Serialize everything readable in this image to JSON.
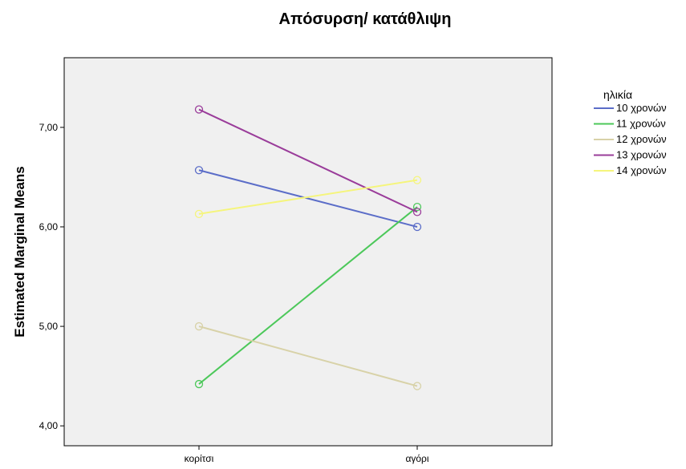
{
  "chart_data": {
    "type": "line",
    "title": "Απόσυρση/ κατάθλιψη",
    "ylabel": "Estimated Marginal Means",
    "xlabel": "",
    "categories": [
      "κορίτσι",
      "αγόρι"
    ],
    "ylim": [
      3.8,
      7.7
    ],
    "yticks": [
      4.0,
      5.0,
      6.0,
      7.0
    ],
    "ytick_labels": [
      "4,00",
      "5,00",
      "6,00",
      "7,00"
    ],
    "grid": false,
    "legend_title": "ηλικία",
    "legend_position": "right",
    "series": [
      {
        "name": "10 χρονών",
        "color": "#5b6dc8",
        "values": [
          6.57,
          6.0
        ]
      },
      {
        "name": "11 χρονών",
        "color": "#4cc85a",
        "values": [
          4.42,
          6.2
        ]
      },
      {
        "name": "12 χρονών",
        "color": "#d8d2a8",
        "values": [
          5.0,
          4.4
        ]
      },
      {
        "name": "13 χρονών",
        "color": "#9a3c9a",
        "values": [
          7.18,
          6.15
        ]
      },
      {
        "name": "14 χρονών",
        "color": "#f5f57c",
        "values": [
          6.13,
          6.47
        ]
      }
    ],
    "plot_background": "#f0f0f0"
  }
}
